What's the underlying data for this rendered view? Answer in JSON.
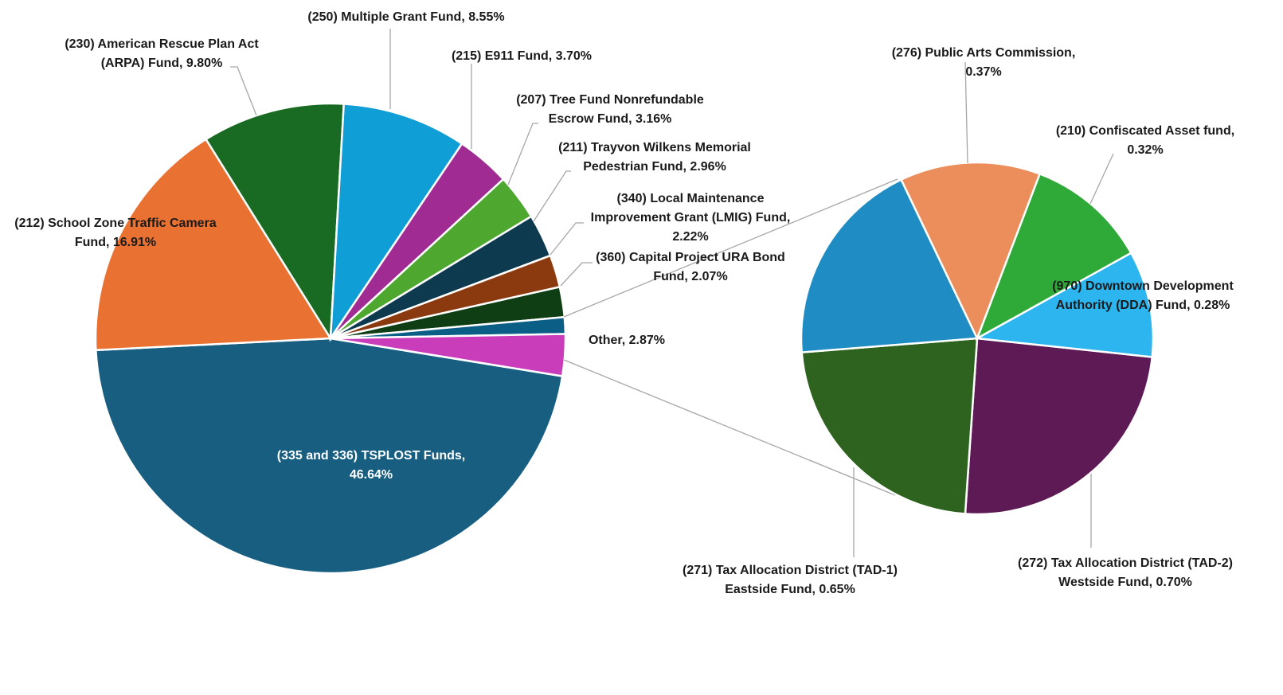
{
  "chart_data": {
    "type": "pie-of-pie",
    "main": {
      "slices": [
        {
          "name": "(335 and 336) TSPLOST Funds",
          "value": 46.64,
          "label": [
            "(335 and 336) TSPLOST Funds,",
            "46.64%"
          ],
          "color": "#175E80"
        },
        {
          "name": "(212) School Zone Traffic Camera Fund",
          "value": 16.91,
          "label": [
            "(212) School Zone Traffic  Camera",
            "Fund, 16.91%"
          ],
          "color": "#E97132"
        },
        {
          "name": "(230) American Rescue Plan Act (ARPA) Fund",
          "value": 9.8,
          "label": [
            "(230) American Rescue Plan Act",
            "(ARPA) Fund, 9.80%"
          ],
          "color": "#196B24"
        },
        {
          "name": "(250) Multiple Grant Fund",
          "value": 8.55,
          "label": [
            "(250) Multiple Grant Fund, 8.55%"
          ],
          "color": "#0F9ED5"
        },
        {
          "name": "(215) E911 Fund",
          "value": 3.7,
          "label": [
            "(215) E911 Fund, 3.70%"
          ],
          "color": "#A02B93"
        },
        {
          "name": "(207) Tree Fund Nonrefundable Escrow Fund",
          "value": 3.16,
          "label": [
            "(207) Tree Fund Nonrefundable",
            "Escrow Fund, 3.16%"
          ],
          "color": "#4EA72E"
        },
        {
          "name": "(211) Trayvon Wilkens Memorial Pedestrian Fund",
          "value": 2.96,
          "label": [
            "(211) Trayvon Wilkens Memorial",
            "Pedestrian Fund, 2.96%"
          ],
          "color": "#0E3A4F"
        },
        {
          "name": "(340) Local Maintenance Improvement Grant (LMIG) Fund",
          "value": 2.22,
          "label": [
            "(340) Local Maintenance",
            "Improvement Grant (LMIG) Fund,",
            "2.22%"
          ],
          "color": "#8B3A10"
        },
        {
          "name": "(360) Capital Project URA Bond Fund",
          "value": 2.07,
          "label": [
            "(360) Capital  Project URA Bond",
            "Fund, 2.07%"
          ],
          "color": "#0F3D14"
        },
        {
          "name": "Other (connector)",
          "value": 1.15,
          "label": [],
          "color": "#0B5F87"
        },
        {
          "name": "Other",
          "value": 2.87,
          "label": [
            "Other, 2.87%"
          ],
          "color": "#C93DBA"
        }
      ]
    },
    "secondary": {
      "slices": [
        {
          "name": "(272) Tax Allocation District (TAD-2) Westside Fund",
          "value": 0.7,
          "label": [
            "(272) Tax Allocation District (TAD-2)",
            "Westside Fund, 0.70%"
          ],
          "color": "#5E1A55"
        },
        {
          "name": "(271) Tax Allocation District (TAD-1) Eastside Fund",
          "value": 0.65,
          "label": [
            "(271) Tax Allocation District (TAD-1)",
            "Eastside Fund, 0.65%"
          ],
          "color": "#2D631E"
        },
        {
          "name": "(unlabeled)",
          "value": 0.55,
          "label": [],
          "color": "#1F8CC4"
        },
        {
          "name": "(276) Public Arts Commission",
          "value": 0.37,
          "label": [
            "(276) Public Arts Commission,",
            "0.37%"
          ],
          "color": "#EC8E5C"
        },
        {
          "name": "(210) Confiscated Asset fund",
          "value": 0.32,
          "label": [
            "(210) Confiscated Asset fund,",
            "0.32%"
          ],
          "color": "#2FA937"
        },
        {
          "name": "(970) Downtown Development Authority (DDA) Fund",
          "value": 0.28,
          "label": [
            "(970) Downtown Development",
            "Authority (DDA) Fund, 0.28%"
          ],
          "color": "#2DB5EF"
        }
      ]
    }
  }
}
